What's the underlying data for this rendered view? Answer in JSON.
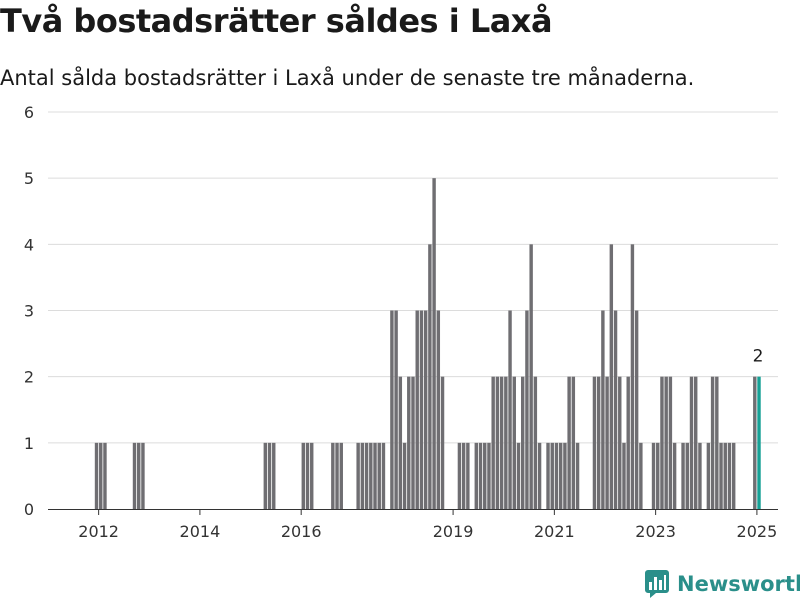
{
  "title": "Två bostadsrätter såldes i Laxå",
  "subtitle": "Antal sålda bostadsrätter i Laxå under de senaste tre månaderna.",
  "brand": {
    "name": "Newsworthy",
    "icon": "newsworthy-logo-icon",
    "color": "#2a8f8a"
  },
  "colors": {
    "bar": "#6f6e72",
    "highlight": "#17a196",
    "grid": "#dcdcdc",
    "axis": "#333333"
  },
  "chart_data": {
    "type": "bar",
    "x_unit": "month",
    "y_label": "",
    "ylim": [
      0,
      6
    ],
    "y_ticks": [
      0,
      1,
      2,
      3,
      4,
      5,
      6
    ],
    "x_tick_labels": [
      "2012",
      "2014",
      "2016",
      "2019",
      "2021",
      "2023",
      "2025"
    ],
    "grid": true,
    "series": [
      {
        "values": [
          [
            "2011-12",
            1
          ],
          [
            "2012-01",
            1
          ],
          [
            "2012-02",
            1
          ],
          [
            "2012-09",
            1
          ],
          [
            "2012-10",
            1
          ],
          [
            "2012-11",
            1
          ],
          [
            "2015-04",
            1
          ],
          [
            "2015-05",
            1
          ],
          [
            "2015-06",
            1
          ],
          [
            "2016-01",
            1
          ],
          [
            "2016-02",
            1
          ],
          [
            "2016-03",
            1
          ],
          [
            "2016-08",
            1
          ],
          [
            "2016-09",
            1
          ],
          [
            "2016-10",
            1
          ],
          [
            "2017-02",
            1
          ],
          [
            "2017-03",
            1
          ],
          [
            "2017-04",
            1
          ],
          [
            "2017-05",
            1
          ],
          [
            "2017-06",
            1
          ],
          [
            "2017-07",
            1
          ],
          [
            "2017-08",
            1
          ],
          [
            "2017-10",
            3
          ],
          [
            "2017-11",
            3
          ],
          [
            "2017-12",
            2
          ],
          [
            "2018-01",
            1
          ],
          [
            "2018-02",
            2
          ],
          [
            "2018-03",
            2
          ],
          [
            "2018-04",
            3
          ],
          [
            "2018-05",
            3
          ],
          [
            "2018-06",
            3
          ],
          [
            "2018-07",
            4
          ],
          [
            "2018-08",
            5
          ],
          [
            "2018-09",
            3
          ],
          [
            "2018-10",
            2
          ],
          [
            "2019-02",
            1
          ],
          [
            "2019-03",
            1
          ],
          [
            "2019-04",
            1
          ],
          [
            "2019-06",
            1
          ],
          [
            "2019-07",
            1
          ],
          [
            "2019-08",
            1
          ],
          [
            "2019-09",
            1
          ],
          [
            "2019-10",
            2
          ],
          [
            "2019-11",
            2
          ],
          [
            "2019-12",
            2
          ],
          [
            "2020-01",
            2
          ],
          [
            "2020-02",
            3
          ],
          [
            "2020-03",
            2
          ],
          [
            "2020-04",
            1
          ],
          [
            "2020-05",
            2
          ],
          [
            "2020-06",
            3
          ],
          [
            "2020-07",
            4
          ],
          [
            "2020-08",
            2
          ],
          [
            "2020-09",
            1
          ],
          [
            "2020-11",
            1
          ],
          [
            "2020-12",
            1
          ],
          [
            "2021-01",
            1
          ],
          [
            "2021-02",
            1
          ],
          [
            "2021-03",
            1
          ],
          [
            "2021-04",
            2
          ],
          [
            "2021-05",
            2
          ],
          [
            "2021-06",
            1
          ],
          [
            "2021-10",
            2
          ],
          [
            "2021-11",
            2
          ],
          [
            "2021-12",
            3
          ],
          [
            "2022-01",
            2
          ],
          [
            "2022-02",
            4
          ],
          [
            "2022-03",
            3
          ],
          [
            "2022-04",
            2
          ],
          [
            "2022-05",
            1
          ],
          [
            "2022-06",
            2
          ],
          [
            "2022-07",
            4
          ],
          [
            "2022-08",
            3
          ],
          [
            "2022-09",
            1
          ],
          [
            "2022-12",
            1
          ],
          [
            "2023-01",
            1
          ],
          [
            "2023-02",
            2
          ],
          [
            "2023-03",
            2
          ],
          [
            "2023-04",
            2
          ],
          [
            "2023-05",
            1
          ],
          [
            "2023-07",
            1
          ],
          [
            "2023-08",
            1
          ],
          [
            "2023-09",
            2
          ],
          [
            "2023-10",
            2
          ],
          [
            "2023-11",
            1
          ],
          [
            "2024-01",
            1
          ],
          [
            "2024-02",
            2
          ],
          [
            "2024-03",
            2
          ],
          [
            "2024-04",
            1
          ],
          [
            "2024-05",
            1
          ],
          [
            "2024-06",
            1
          ],
          [
            "2024-07",
            1
          ],
          [
            "2024-12",
            2
          ],
          [
            "2025-01",
            2
          ]
        ]
      }
    ],
    "highlight": {
      "x": "2025-01",
      "value": 2,
      "label": "2"
    }
  }
}
